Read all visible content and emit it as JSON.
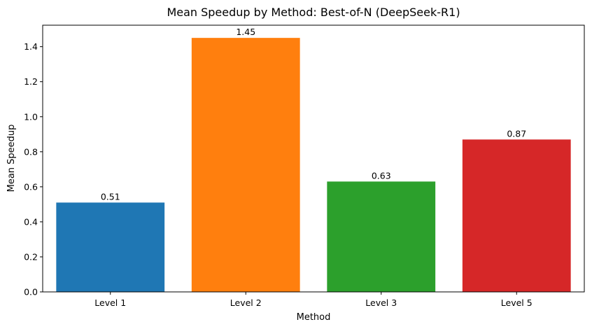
{
  "chart_data": {
    "type": "bar",
    "title": "Mean Speedup by Method: Best-of-N (DeepSeek-R1)",
    "xlabel": "Method",
    "ylabel": "Mean Speedup",
    "categories": [
      "Level 1",
      "Level 2",
      "Level 3",
      "Level 5"
    ],
    "values": [
      0.51,
      1.45,
      0.63,
      0.87
    ],
    "data_labels": [
      "0.51",
      "1.45",
      "0.63",
      "0.87"
    ],
    "colors": [
      "#1f77b4",
      "#ff7f0e",
      "#2ca02c",
      "#d62728"
    ],
    "ylim": [
      0,
      1.5225
    ],
    "yticks": [
      0.0,
      0.2,
      0.4,
      0.6,
      0.8,
      1.0,
      1.2,
      1.4
    ],
    "ytick_labels": [
      "0.0",
      "0.2",
      "0.4",
      "0.6",
      "0.8",
      "1.0",
      "1.2",
      "1.4"
    ],
    "grid": false,
    "legend": "none"
  }
}
